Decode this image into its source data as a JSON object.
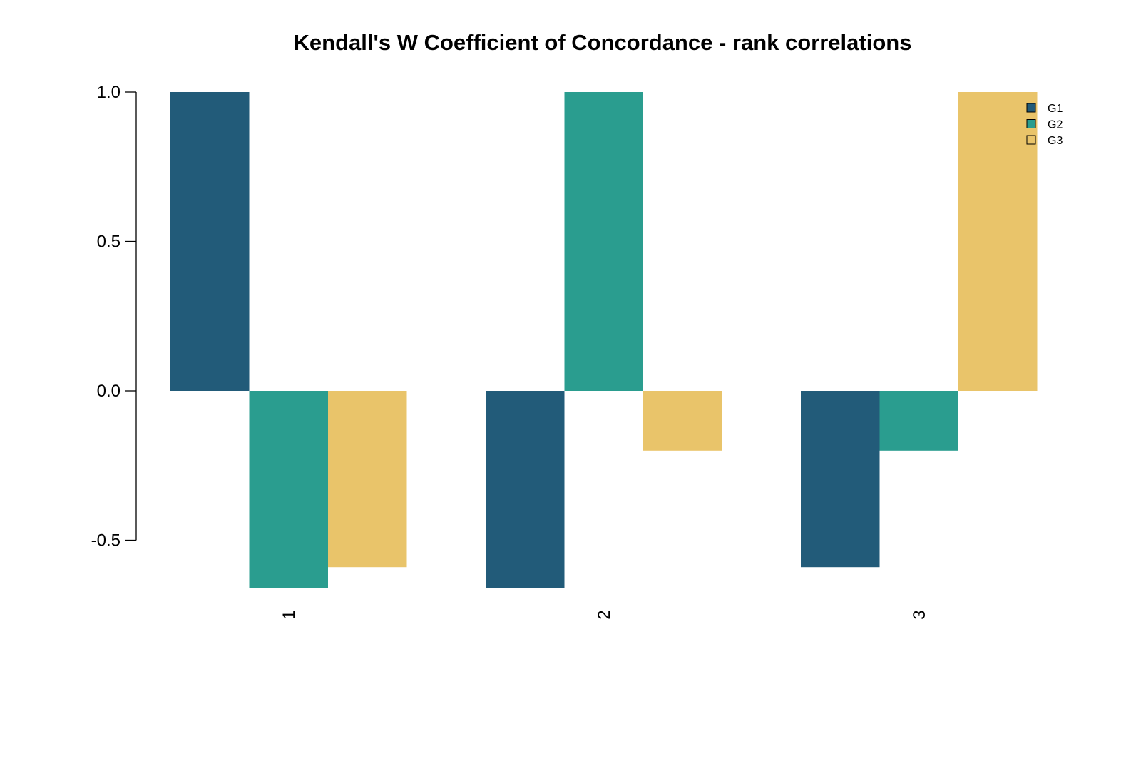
{
  "chart_data": {
    "type": "bar",
    "title": "Kendall's W Coefficient of Concordance - rank correlations",
    "xlabel": "",
    "ylabel": "",
    "categories": [
      "1",
      "2",
      "3"
    ],
    "series": [
      {
        "name": "G1",
        "color": "#225B79",
        "values": [
          1.0,
          -0.66,
          -0.59
        ]
      },
      {
        "name": "G2",
        "color": "#2A9D8F",
        "values": [
          -0.66,
          1.0,
          -0.2
        ]
      },
      {
        "name": "G3",
        "color": "#E9C46A",
        "values": [
          -0.59,
          -0.2,
          1.0
        ]
      }
    ],
    "yticks": [
      "-0.5",
      "0.0",
      "0.5",
      "1.0"
    ],
    "ylim": [
      -0.66,
      1.0
    ],
    "grid": false,
    "legend_position": "top-right",
    "x_tick_rotation": "vertical"
  }
}
